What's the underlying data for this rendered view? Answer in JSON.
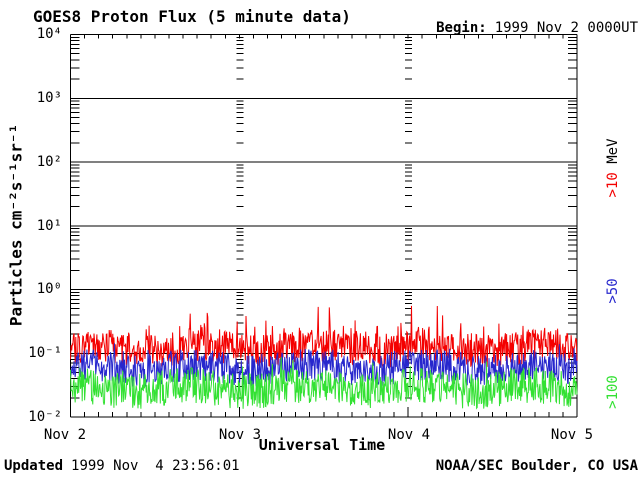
{
  "header": {
    "begin_label": "Begin:",
    "begin_value": "1999 Nov 2 0000UT"
  },
  "footer": {
    "updated_label": "Updated",
    "updated_value": "1999 Nov  4 23:56:01",
    "credit": "NOAA/SEC Boulder, CO USA"
  },
  "chart_data": {
    "type": "line",
    "title": "GOES8 Proton Flux (5 minute data)",
    "xlabel": "Universal Time",
    "ylabel": "Particles cm⁻²s⁻¹sr⁻¹",
    "x_tick_labels": [
      "Nov 2",
      "Nov 3",
      "Nov 4",
      "Nov 5"
    ],
    "y_tick_labels": [
      "10⁴",
      "10³",
      "10²",
      "10¹",
      "10⁰",
      "10⁻¹",
      "10⁻²"
    ],
    "y_log10_range": [
      -2,
      4
    ],
    "x_range_days": 3,
    "sample_interval_minutes": 5,
    "points_per_series": 864,
    "grid": {
      "horizontal": "solid black line at each decade",
      "vertical": "dashed lines at day boundaries (dashes at minor log-tick heights)",
      "minor_ticks": "log minor ticks 2-9 on left and right axes, 2-hour ticks on top and bottom axes"
    },
    "series": [
      {
        "label": ">10 MeV",
        "color": "#f40000",
        "typical_flux": 0.13,
        "flux_range": [
          0.055,
          0.55
        ],
        "log10_mean": -0.92,
        "log10_jitter": 0.27,
        "spike_probability": 0.1,
        "spike_log10_max": 0.42,
        "seed": 101
      },
      {
        "label": ">50 MeV",
        "color": "#2727cd",
        "typical_flux": 0.06,
        "flux_range": [
          0.028,
          0.15
        ],
        "log10_mean": -1.23,
        "log10_jitter": 0.25,
        "spike_probability": 0.06,
        "spike_log10_max": 0.22,
        "seed": 202
      },
      {
        "label": ">100 MeV",
        "color": "#33e133",
        "typical_flux": 0.028,
        "flux_range": [
          0.012,
          0.09
        ],
        "log10_mean": -1.55,
        "log10_jitter": 0.28,
        "spike_probability": 0.05,
        "spike_log10_max": 0.25,
        "seed": 303
      }
    ],
    "right_axis_labels": [
      {
        "value": ">10",
        "unit": " MeV",
        "color": "#f40000"
      },
      {
        "value": ">50",
        "unit": "",
        "color": "#2727cd"
      },
      {
        "value": ">100",
        "unit": "",
        "color": "#33e133"
      }
    ]
  }
}
